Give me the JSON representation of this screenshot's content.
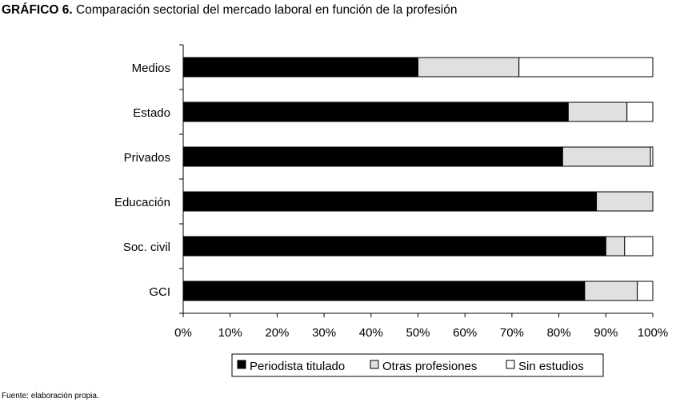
{
  "title": {
    "prefix": "GRÁFICO 6.",
    "text": "Comparación sectorial del mercado laboral en función de la profesión"
  },
  "source": "Fuente: elaboración propia.",
  "chart_data": {
    "type": "bar",
    "orientation": "horizontal",
    "stacked": true,
    "categories": [
      "Medios",
      "Estado",
      "Privados",
      "Educación",
      "Soc. civil",
      "GCI"
    ],
    "series": [
      {
        "name": "Periodista titulado",
        "color": "#000000",
        "values": [
          50,
          82,
          80.8,
          88,
          90,
          85.5
        ]
      },
      {
        "name": "Otras profesiones",
        "color": "#e0e0e0",
        "values": [
          21.5,
          12.5,
          18.7,
          12,
          4,
          11.2
        ]
      },
      {
        "name": "Sin estudios",
        "color": "#ffffff",
        "values": [
          28.5,
          5.5,
          0.5,
          0,
          6,
          3.3
        ]
      }
    ],
    "xlim": [
      0,
      100
    ],
    "xticks": [
      "0%",
      "10%",
      "20%",
      "30%",
      "40%",
      "50%",
      "60%",
      "70%",
      "80%",
      "90%",
      "100%"
    ],
    "grid": false,
    "legend": "bottom"
  }
}
